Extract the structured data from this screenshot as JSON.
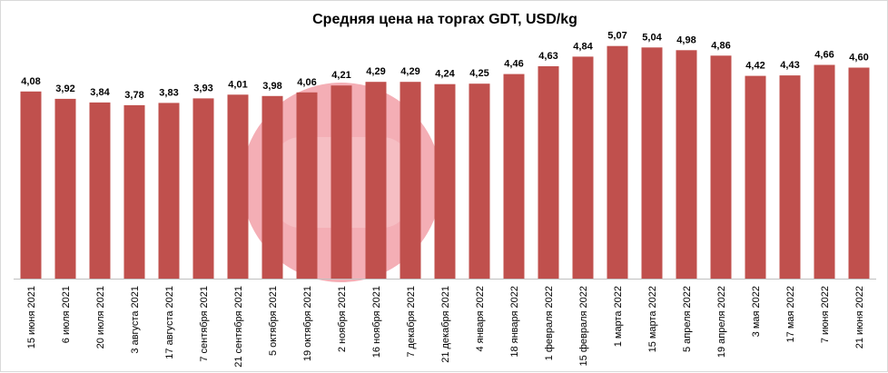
{
  "colors": {
    "bar": "#c0504d",
    "axis": "#bfbfbf",
    "watermark": "#f2a0a8"
  },
  "watermark_icon": "circle-logo-watermark",
  "chart_data": {
    "type": "bar",
    "title": "Средняя цена на торгах GDT, USD/kg",
    "xlabel": "",
    "ylabel": "",
    "ylim": [
      0,
      5.5
    ],
    "grid": false,
    "legend": "none",
    "categories": [
      "15 июня 2021",
      "6 июля 2021",
      "20 июля 2021",
      "3 августа 2021",
      "17 августа 2021",
      "7 сентября 2021",
      "21 сентября 2021",
      "5 октября 2021",
      "19 октября 2021",
      "2 ноября 2021",
      "16 ноября 2021",
      "7 декабря 2021",
      "21 декабря 2021",
      "4 января 2022",
      "18 января 2022",
      "1 февраля 2022",
      "15 февраля 2022",
      "1 марта 2022",
      "15 марта 2022",
      "5 апреля 2022",
      "19 апреля 2022",
      "3 мая 2022",
      "17 мая 2022",
      "7 июня 2022",
      "21 июня 2022"
    ],
    "values": [
      4.08,
      3.92,
      3.84,
      3.78,
      3.83,
      3.93,
      4.01,
      3.98,
      4.06,
      4.21,
      4.29,
      4.29,
      4.24,
      4.25,
      4.46,
      4.63,
      4.84,
      5.07,
      5.04,
      4.98,
      4.86,
      4.42,
      4.43,
      4.66,
      4.6
    ],
    "value_labels": [
      "4,08",
      "3,92",
      "3,84",
      "3,78",
      "3,83",
      "3,93",
      "4,01",
      "3,98",
      "4,06",
      "4,21",
      "4,29",
      "4,29",
      "4,24",
      "4,25",
      "4,46",
      "4,63",
      "4,84",
      "5,07",
      "5,04",
      "4,98",
      "4,86",
      "4,42",
      "4,43",
      "4,66",
      "4,60"
    ]
  }
}
